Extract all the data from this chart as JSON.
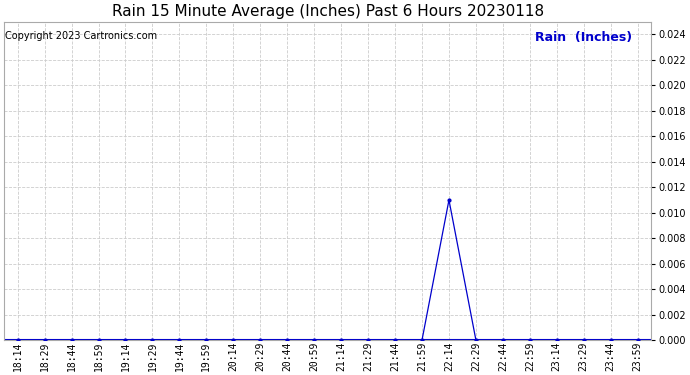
{
  "title": "Rain 15 Minute Average (Inches) Past 6 Hours 20230118",
  "copyright": "Copyright 2023 Cartronics.com",
  "legend_label": "Rain  (Inches)",
  "x_labels": [
    "18:14",
    "18:29",
    "18:44",
    "18:59",
    "19:14",
    "19:29",
    "19:44",
    "19:59",
    "20:14",
    "20:29",
    "20:44",
    "20:59",
    "21:14",
    "21:29",
    "21:44",
    "21:59",
    "22:14",
    "22:29",
    "22:44",
    "22:59",
    "23:14",
    "23:29",
    "23:44",
    "23:59"
  ],
  "y_values": [
    0.0,
    0.0,
    0.0,
    0.0,
    0.0,
    0.0,
    0.0,
    0.0,
    0.0,
    0.0,
    0.0,
    0.0,
    0.0,
    0.0,
    0.0,
    0.0,
    0.011,
    0.0,
    0.0,
    0.0,
    0.0,
    0.0,
    0.0,
    0.0
  ],
  "ylim": [
    0.0,
    0.025
  ],
  "yticks": [
    0.0,
    0.002,
    0.004,
    0.006,
    0.008,
    0.01,
    0.012,
    0.014,
    0.016,
    0.018,
    0.02,
    0.022,
    0.024
  ],
  "line_color": "#0000cc",
  "bg_color": "#ffffff",
  "grid_color": "#cccccc",
  "title_color": "#000000",
  "copyright_color": "#000000",
  "legend_color": "#0000cc",
  "title_fontsize": 11,
  "copyright_fontsize": 7,
  "legend_fontsize": 9,
  "tick_fontsize": 7,
  "ytick_fontsize": 7,
  "figwidth": 6.9,
  "figheight": 3.75,
  "dpi": 100
}
